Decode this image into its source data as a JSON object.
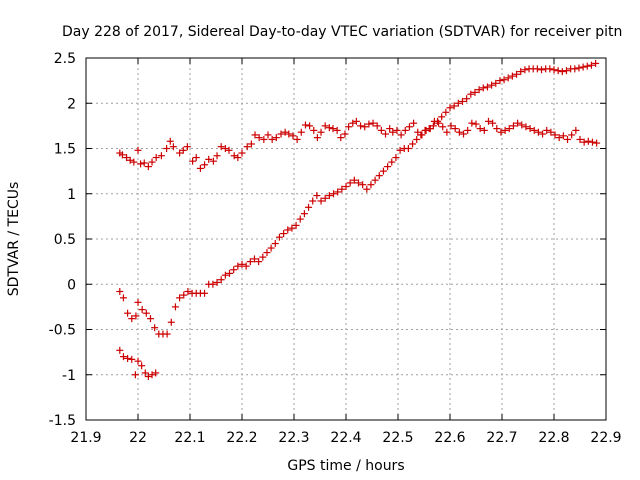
{
  "chart_data": {
    "type": "scatter",
    "title": "Day 228 of 2017, Sidereal Day-to-day VTEC variation (SDTVAR) for receiver pitn",
    "xlabel": "GPS time / hours",
    "ylabel": "SDTVAR / TECUs",
    "xlim": [
      21.9,
      22.9
    ],
    "ylim": [
      -1.5,
      2.5
    ],
    "xticks": [
      "21.9",
      "22",
      "22.1",
      "22.2",
      "22.3",
      "22.4",
      "22.5",
      "22.6",
      "22.7",
      "22.8",
      "22.9"
    ],
    "yticks": [
      "-1.5",
      "-1",
      "-0.5",
      "0",
      "0.5",
      "1",
      "1.5",
      "2",
      "2.5"
    ],
    "grid": true,
    "marker": "plus",
    "color": "#cc0000",
    "series": [
      {
        "points": [
          [
            21.965,
            1.45
          ],
          [
            21.97,
            1.43
          ],
          [
            21.978,
            1.4
          ],
          [
            21.985,
            1.37
          ],
          [
            21.992,
            1.35
          ],
          [
            22.0,
            1.48
          ],
          [
            22.005,
            1.33
          ],
          [
            22.012,
            1.34
          ],
          [
            22.02,
            1.3
          ],
          [
            22.027,
            1.35
          ],
          [
            22.035,
            1.4
          ],
          [
            22.045,
            1.42
          ],
          [
            22.055,
            1.5
          ],
          [
            22.062,
            1.58
          ],
          [
            22.068,
            1.52
          ],
          [
            22.08,
            1.45
          ],
          [
            22.087,
            1.48
          ],
          [
            22.095,
            1.52
          ],
          [
            22.105,
            1.36
          ],
          [
            22.112,
            1.4
          ],
          [
            22.12,
            1.28
          ],
          [
            22.128,
            1.32
          ],
          [
            22.136,
            1.38
          ],
          [
            22.145,
            1.36
          ],
          [
            22.152,
            1.42
          ],
          [
            22.16,
            1.52
          ],
          [
            22.168,
            1.5
          ],
          [
            22.175,
            1.48
          ],
          [
            22.185,
            1.42
          ],
          [
            22.192,
            1.4
          ],
          [
            22.2,
            1.45
          ],
          [
            22.21,
            1.52
          ],
          [
            22.218,
            1.55
          ],
          [
            22.225,
            1.65
          ],
          [
            22.233,
            1.62
          ],
          [
            22.242,
            1.6
          ],
          [
            22.25,
            1.65
          ],
          [
            22.258,
            1.6
          ],
          [
            22.266,
            1.62
          ],
          [
            22.275,
            1.66
          ],
          [
            22.283,
            1.68
          ],
          [
            22.29,
            1.66
          ],
          [
            22.298,
            1.64
          ],
          [
            22.306,
            1.6
          ],
          [
            22.314,
            1.68
          ],
          [
            22.322,
            1.76
          ],
          [
            22.33,
            1.75
          ],
          [
            22.338,
            1.7
          ],
          [
            22.345,
            1.62
          ],
          [
            22.352,
            1.68
          ],
          [
            22.36,
            1.75
          ],
          [
            22.368,
            1.73
          ],
          [
            22.375,
            1.72
          ],
          [
            22.383,
            1.7
          ],
          [
            22.39,
            1.62
          ],
          [
            22.398,
            1.66
          ],
          [
            22.405,
            1.74
          ],
          [
            22.413,
            1.78
          ],
          [
            22.42,
            1.8
          ],
          [
            22.428,
            1.75
          ],
          [
            22.436,
            1.74
          ],
          [
            22.444,
            1.77
          ],
          [
            22.452,
            1.78
          ],
          [
            22.46,
            1.75
          ],
          [
            22.468,
            1.7
          ],
          [
            22.476,
            1.66
          ],
          [
            22.484,
            1.72
          ],
          [
            22.49,
            1.68
          ],
          [
            22.498,
            1.7
          ],
          [
            22.506,
            1.65
          ],
          [
            22.514,
            1.7
          ],
          [
            22.522,
            1.74
          ],
          [
            22.53,
            1.78
          ],
          [
            22.538,
            1.68
          ],
          [
            22.546,
            1.65
          ],
          [
            22.554,
            1.7
          ],
          [
            22.562,
            1.72
          ],
          [
            22.57,
            1.8
          ],
          [
            22.578,
            1.78
          ],
          [
            22.586,
            1.74
          ],
          [
            22.594,
            1.68
          ],
          [
            22.602,
            1.75
          ],
          [
            22.61,
            1.72
          ],
          [
            22.618,
            1.68
          ],
          [
            22.626,
            1.66
          ],
          [
            22.634,
            1.7
          ],
          [
            22.642,
            1.78
          ],
          [
            22.65,
            1.77
          ],
          [
            22.658,
            1.72
          ],
          [
            22.666,
            1.7
          ],
          [
            22.674,
            1.8
          ],
          [
            22.682,
            1.78
          ],
          [
            22.69,
            1.72
          ],
          [
            22.698,
            1.68
          ],
          [
            22.706,
            1.7
          ],
          [
            22.714,
            1.72
          ],
          [
            22.722,
            1.75
          ],
          [
            22.73,
            1.78
          ],
          [
            22.738,
            1.76
          ],
          [
            22.746,
            1.74
          ],
          [
            22.754,
            1.72
          ],
          [
            22.762,
            1.7
          ],
          [
            22.77,
            1.68
          ],
          [
            22.778,
            1.66
          ],
          [
            22.786,
            1.7
          ],
          [
            22.794,
            1.68
          ],
          [
            22.802,
            1.65
          ],
          [
            22.81,
            1.62
          ],
          [
            22.818,
            1.64
          ],
          [
            22.826,
            1.6
          ],
          [
            22.834,
            1.65
          ],
          [
            22.842,
            1.7
          ],
          [
            22.85,
            1.6
          ],
          [
            22.858,
            1.57
          ],
          [
            22.866,
            1.58
          ],
          [
            22.874,
            1.57
          ],
          [
            22.882,
            1.56
          ]
        ]
      },
      {
        "points": [
          [
            21.965,
            -0.08
          ],
          [
            21.972,
            -0.15
          ],
          [
            21.98,
            -0.32
          ],
          [
            21.988,
            -0.38
          ],
          [
            21.996,
            -0.35
          ],
          [
            22.0,
            -0.2
          ],
          [
            22.008,
            -0.28
          ],
          [
            22.016,
            -0.32
          ],
          [
            22.024,
            -0.38
          ],
          [
            22.032,
            -0.48
          ],
          [
            22.04,
            -0.55
          ],
          [
            22.048,
            -0.55
          ],
          [
            22.056,
            -0.55
          ],
          [
            22.064,
            -0.42
          ],
          [
            22.072,
            -0.25
          ],
          [
            22.08,
            -0.15
          ],
          [
            22.088,
            -0.12
          ],
          [
            22.096,
            -0.08
          ],
          [
            22.104,
            -0.1
          ],
          [
            22.112,
            -0.1
          ],
          [
            22.12,
            -0.1
          ],
          [
            22.128,
            -0.1
          ],
          [
            22.136,
            0.0
          ],
          [
            22.144,
            0.0
          ],
          [
            22.152,
            0.02
          ],
          [
            22.16,
            0.05
          ],
          [
            22.168,
            0.1
          ],
          [
            22.176,
            0.12
          ],
          [
            22.184,
            0.16
          ],
          [
            22.192,
            0.2
          ],
          [
            22.2,
            0.22
          ],
          [
            22.208,
            0.2
          ],
          [
            22.216,
            0.25
          ],
          [
            22.224,
            0.28
          ],
          [
            22.232,
            0.25
          ],
          [
            22.24,
            0.3
          ],
          [
            22.248,
            0.35
          ],
          [
            22.256,
            0.4
          ],
          [
            22.264,
            0.45
          ],
          [
            22.272,
            0.52
          ],
          [
            22.28,
            0.56
          ],
          [
            22.288,
            0.6
          ],
          [
            22.296,
            0.62
          ],
          [
            22.304,
            0.65
          ],
          [
            22.312,
            0.72
          ],
          [
            22.32,
            0.78
          ],
          [
            22.328,
            0.85
          ],
          [
            22.336,
            0.92
          ],
          [
            22.344,
            0.98
          ],
          [
            22.352,
            0.92
          ],
          [
            22.36,
            0.95
          ],
          [
            22.368,
            0.98
          ],
          [
            22.376,
            1.0
          ],
          [
            22.384,
            1.02
          ],
          [
            22.392,
            1.05
          ],
          [
            22.4,
            1.08
          ],
          [
            22.408,
            1.12
          ],
          [
            22.416,
            1.15
          ],
          [
            22.424,
            1.12
          ],
          [
            22.432,
            1.1
          ],
          [
            22.44,
            1.05
          ],
          [
            22.448,
            1.1
          ],
          [
            22.456,
            1.15
          ],
          [
            22.464,
            1.2
          ],
          [
            22.472,
            1.25
          ],
          [
            22.48,
            1.3
          ],
          [
            22.488,
            1.35
          ],
          [
            22.496,
            1.4
          ],
          [
            22.504,
            1.48
          ],
          [
            22.512,
            1.5
          ],
          [
            22.52,
            1.5
          ],
          [
            22.528,
            1.55
          ],
          [
            22.536,
            1.6
          ],
          [
            22.544,
            1.65
          ],
          [
            22.552,
            1.7
          ],
          [
            22.56,
            1.72
          ],
          [
            22.568,
            1.75
          ],
          [
            22.576,
            1.8
          ],
          [
            22.584,
            1.85
          ],
          [
            22.592,
            1.9
          ],
          [
            22.6,
            1.95
          ],
          [
            22.608,
            1.97
          ],
          [
            22.616,
            2.0
          ],
          [
            22.624,
            2.02
          ],
          [
            22.632,
            2.05
          ],
          [
            22.64,
            2.1
          ],
          [
            22.648,
            2.12
          ],
          [
            22.656,
            2.15
          ],
          [
            22.664,
            2.17
          ],
          [
            22.672,
            2.18
          ],
          [
            22.68,
            2.2
          ],
          [
            22.688,
            2.22
          ],
          [
            22.696,
            2.25
          ],
          [
            22.704,
            2.26
          ],
          [
            22.712,
            2.28
          ],
          [
            22.72,
            2.3
          ],
          [
            22.728,
            2.32
          ],
          [
            22.736,
            2.35
          ],
          [
            22.744,
            2.37
          ],
          [
            22.752,
            2.38
          ],
          [
            22.76,
            2.38
          ],
          [
            22.768,
            2.38
          ],
          [
            22.776,
            2.37
          ],
          [
            22.784,
            2.38
          ],
          [
            22.792,
            2.38
          ],
          [
            22.8,
            2.37
          ],
          [
            22.808,
            2.36
          ],
          [
            22.816,
            2.35
          ],
          [
            22.824,
            2.36
          ],
          [
            22.832,
            2.38
          ],
          [
            22.84,
            2.38
          ],
          [
            22.848,
            2.39
          ],
          [
            22.856,
            2.4
          ],
          [
            22.864,
            2.41
          ],
          [
            22.872,
            2.42
          ],
          [
            22.88,
            2.44
          ]
        ]
      },
      {
        "points": [
          [
            21.965,
            -0.73
          ],
          [
            21.972,
            -0.8
          ],
          [
            21.98,
            -0.82
          ],
          [
            21.988,
            -0.83
          ],
          [
            21.995,
            -1.0
          ],
          [
            22.0,
            -0.85
          ],
          [
            22.007,
            -0.9
          ],
          [
            22.014,
            -0.98
          ],
          [
            22.02,
            -1.02
          ],
          [
            22.027,
            -1.0
          ],
          [
            22.034,
            -0.98
          ]
        ]
      }
    ]
  }
}
